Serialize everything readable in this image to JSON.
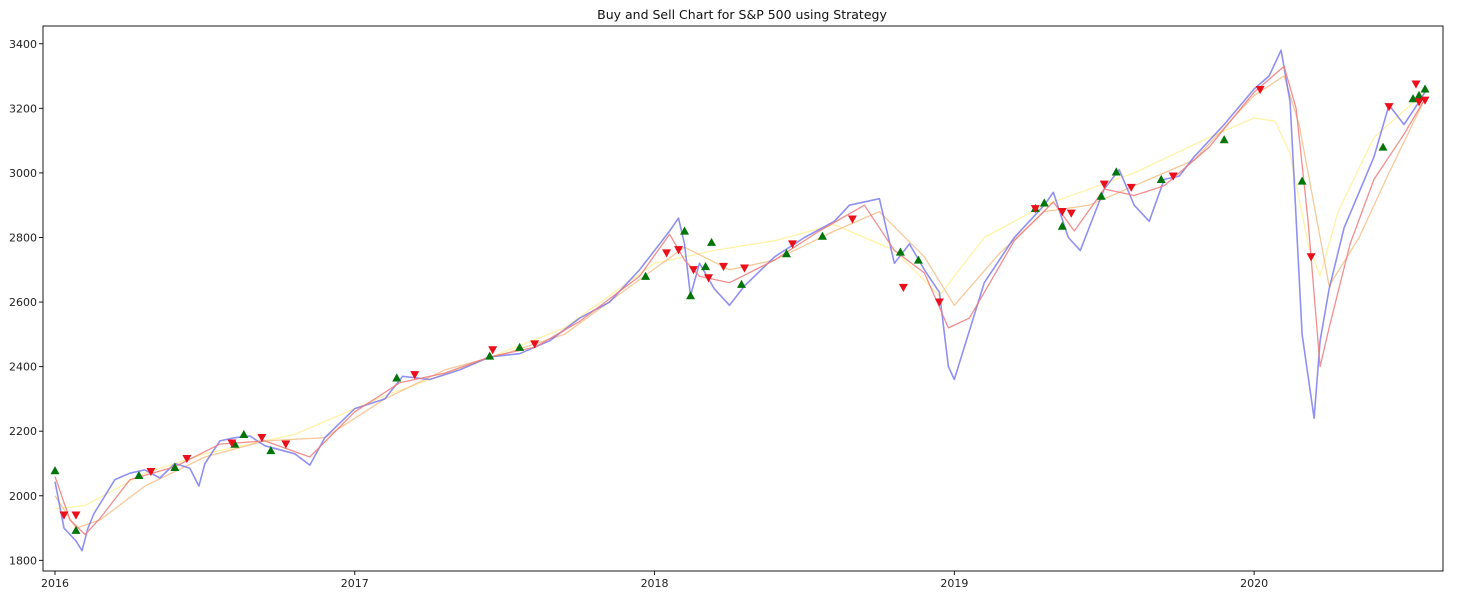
{
  "chart_data": {
    "type": "line",
    "title": "Buy and Sell Chart for S&P 500 using Strategy",
    "xlabel": "",
    "ylabel": "",
    "xlim": [
      2015.96,
      2020.63
    ],
    "ylim": [
      1767,
      3455
    ],
    "x_ticks": [
      {
        "value": 2016,
        "label": "2016"
      },
      {
        "value": 2017,
        "label": "2017"
      },
      {
        "value": 2018,
        "label": "2018"
      },
      {
        "value": 2019,
        "label": "2019"
      },
      {
        "value": 2020,
        "label": "2020"
      }
    ],
    "y_ticks": [
      1800,
      2000,
      2200,
      2400,
      2600,
      2800,
      3000,
      3200,
      3400
    ],
    "grid": false,
    "legend": "none",
    "series": [
      {
        "role": "price",
        "color": "#6b6bef",
        "x": [
          2016.0,
          2016.03,
          2016.05,
          2016.07,
          2016.09,
          2016.11,
          2016.13,
          2016.16,
          2016.2,
          2016.25,
          2016.3,
          2016.35,
          2016.4,
          2016.45,
          2016.48,
          2016.5,
          2016.55,
          2016.6,
          2016.65,
          2016.7,
          2016.72,
          2016.8,
          2016.85,
          2016.9,
          2017.0,
          2017.1,
          2017.16,
          2017.25,
          2017.35,
          2017.45,
          2017.55,
          2017.65,
          2017.75,
          2017.85,
          2017.95,
          2018.05,
          2018.08,
          2018.1,
          2018.12,
          2018.15,
          2018.2,
          2018.25,
          2018.3,
          2018.4,
          2018.5,
          2018.6,
          2018.65,
          2018.75,
          2018.8,
          2018.85,
          2018.9,
          2018.95,
          2018.98,
          2019.0,
          2019.1,
          2019.2,
          2019.3,
          2019.33,
          2019.38,
          2019.42,
          2019.5,
          2019.55,
          2019.6,
          2019.65,
          2019.7,
          2019.75,
          2019.8,
          2019.9,
          2020.0,
          2020.05,
          2020.09,
          2020.12,
          2020.14,
          2020.16,
          2020.2,
          2020.22,
          2020.25,
          2020.3,
          2020.35,
          2020.4,
          2020.45,
          2020.5,
          2020.55,
          2020.57
        ],
        "values": [
          2044,
          1900,
          1880,
          1860,
          1830,
          1900,
          1945,
          1990,
          2050,
          2070,
          2080,
          2055,
          2100,
          2085,
          2030,
          2100,
          2170,
          2180,
          2185,
          2155,
          2150,
          2130,
          2095,
          2180,
          2270,
          2300,
          2370,
          2360,
          2390,
          2430,
          2440,
          2480,
          2550,
          2600,
          2700,
          2820,
          2860,
          2780,
          2620,
          2720,
          2640,
          2590,
          2650,
          2740,
          2800,
          2850,
          2900,
          2920,
          2720,
          2780,
          2700,
          2630,
          2400,
          2360,
          2660,
          2800,
          2900,
          2940,
          2800,
          2760,
          2950,
          3010,
          2900,
          2850,
          2980,
          2990,
          3050,
          3150,
          3260,
          3300,
          3380,
          3220,
          2860,
          2500,
          2240,
          2480,
          2640,
          2830,
          2940,
          3050,
          3210,
          3150,
          3220,
          3250
        ]
      },
      {
        "role": "short moving average",
        "color": "#ef7a7a",
        "x": [
          2016.0,
          2016.05,
          2016.1,
          2016.15,
          2016.25,
          2016.4,
          2016.55,
          2016.7,
          2016.85,
          2017.0,
          2017.15,
          2017.3,
          2017.45,
          2017.6,
          2017.75,
          2017.95,
          2018.05,
          2018.1,
          2018.15,
          2018.25,
          2018.4,
          2018.55,
          2018.7,
          2018.8,
          2018.9,
          2018.98,
          2019.05,
          2019.2,
          2019.33,
          2019.4,
          2019.5,
          2019.6,
          2019.7,
          2019.85,
          2020.0,
          2020.1,
          2020.14,
          2020.18,
          2020.22,
          2020.25,
          2020.32,
          2020.4,
          2020.5,
          2020.57
        ],
        "values": [
          2060,
          1925,
          1880,
          1930,
          2050,
          2090,
          2160,
          2170,
          2120,
          2260,
          2350,
          2380,
          2430,
          2460,
          2540,
          2680,
          2810,
          2730,
          2680,
          2660,
          2730,
          2820,
          2900,
          2760,
          2690,
          2520,
          2550,
          2790,
          2910,
          2820,
          2950,
          2930,
          2960,
          3080,
          3250,
          3330,
          3200,
          2850,
          2400,
          2520,
          2780,
          2980,
          3120,
          3230
        ]
      },
      {
        "role": "medium moving average",
        "color": "#f5c08a",
        "x": [
          2016.0,
          2016.07,
          2016.15,
          2016.3,
          2016.5,
          2016.7,
          2016.9,
          2017.1,
          2017.3,
          2017.5,
          2017.7,
          2017.95,
          2018.1,
          2018.25,
          2018.4,
          2018.6,
          2018.75,
          2018.9,
          2019.0,
          2019.15,
          2019.3,
          2019.45,
          2019.6,
          2019.8,
          2020.0,
          2020.1,
          2020.15,
          2020.2,
          2020.25,
          2020.35,
          2020.45,
          2020.57
        ],
        "values": [
          2000,
          1900,
          1925,
          2030,
          2120,
          2170,
          2180,
          2300,
          2390,
          2440,
          2500,
          2670,
          2770,
          2700,
          2730,
          2820,
          2880,
          2740,
          2590,
          2750,
          2880,
          2900,
          2960,
          3040,
          3240,
          3300,
          3150,
          2900,
          2650,
          2800,
          3000,
          3230
        ]
      },
      {
        "role": "long moving average",
        "color": "#fff099",
        "x": [
          2016.0,
          2016.1,
          2016.3,
          2016.5,
          2016.8,
          2017.1,
          2017.4,
          2017.7,
          2018.0,
          2018.2,
          2018.4,
          2018.6,
          2018.8,
          2018.95,
          2019.1,
          2019.3,
          2019.6,
          2019.85,
          2020.0,
          2020.07,
          2020.12,
          2020.18,
          2020.22,
          2020.28,
          2020.4,
          2020.57
        ],
        "values": [
          1960,
          1970,
          2070,
          2130,
          2190,
          2310,
          2410,
          2520,
          2720,
          2760,
          2790,
          2840,
          2760,
          2620,
          2800,
          2900,
          3000,
          3110,
          3170,
          3160,
          3060,
          2780,
          2680,
          2880,
          3110,
          3250
        ]
      }
    ],
    "buy_signals": {
      "marker": "triangle-up",
      "color": "#00750a",
      "x": [
        2016.0,
        2016.07,
        2016.28,
        2016.4,
        2016.6,
        2016.63,
        2016.72,
        2017.14,
        2017.45,
        2017.55,
        2017.97,
        2018.1,
        2018.12,
        2018.17,
        2018.19,
        2018.29,
        2018.44,
        2018.56,
        2018.82,
        2018.88,
        2019.27,
        2019.3,
        2019.36,
        2019.49,
        2019.54,
        2019.69,
        2019.9,
        2020.16,
        2020.43,
        2020.53,
        2020.55,
        2020.57
      ],
      "values": [
        2078,
        1893,
        2063,
        2088,
        2160,
        2190,
        2140,
        2365,
        2433,
        2460,
        2680,
        2820,
        2620,
        2710,
        2785,
        2655,
        2750,
        2804,
        2755,
        2730,
        2890,
        2907,
        2835,
        2928,
        3003,
        2980,
        3103,
        2975,
        3080,
        3230,
        3240,
        3260
      ]
    },
    "sell_signals": {
      "marker": "triangle-down",
      "color": "#ea0f1b",
      "x": [
        2016.03,
        2016.07,
        2016.32,
        2016.44,
        2016.59,
        2016.69,
        2016.77,
        2017.2,
        2017.46,
        2017.6,
        2018.04,
        2018.08,
        2018.13,
        2018.18,
        2018.23,
        2018.3,
        2018.46,
        2018.66,
        2018.83,
        2018.95,
        2019.27,
        2019.36,
        2019.39,
        2019.5,
        2019.59,
        2019.73,
        2020.02,
        2020.19,
        2020.45,
        2020.54,
        2020.55,
        2020.57
      ],
      "values": [
        1940,
        1940,
        2075,
        2115,
        2163,
        2180,
        2160,
        2375,
        2452,
        2470,
        2752,
        2762,
        2700,
        2675,
        2710,
        2705,
        2780,
        2857,
        2645,
        2600,
        2889,
        2880,
        2875,
        2965,
        2955,
        2990,
        3258,
        2740,
        3205,
        3275,
        3220,
        3225
      ]
    }
  }
}
